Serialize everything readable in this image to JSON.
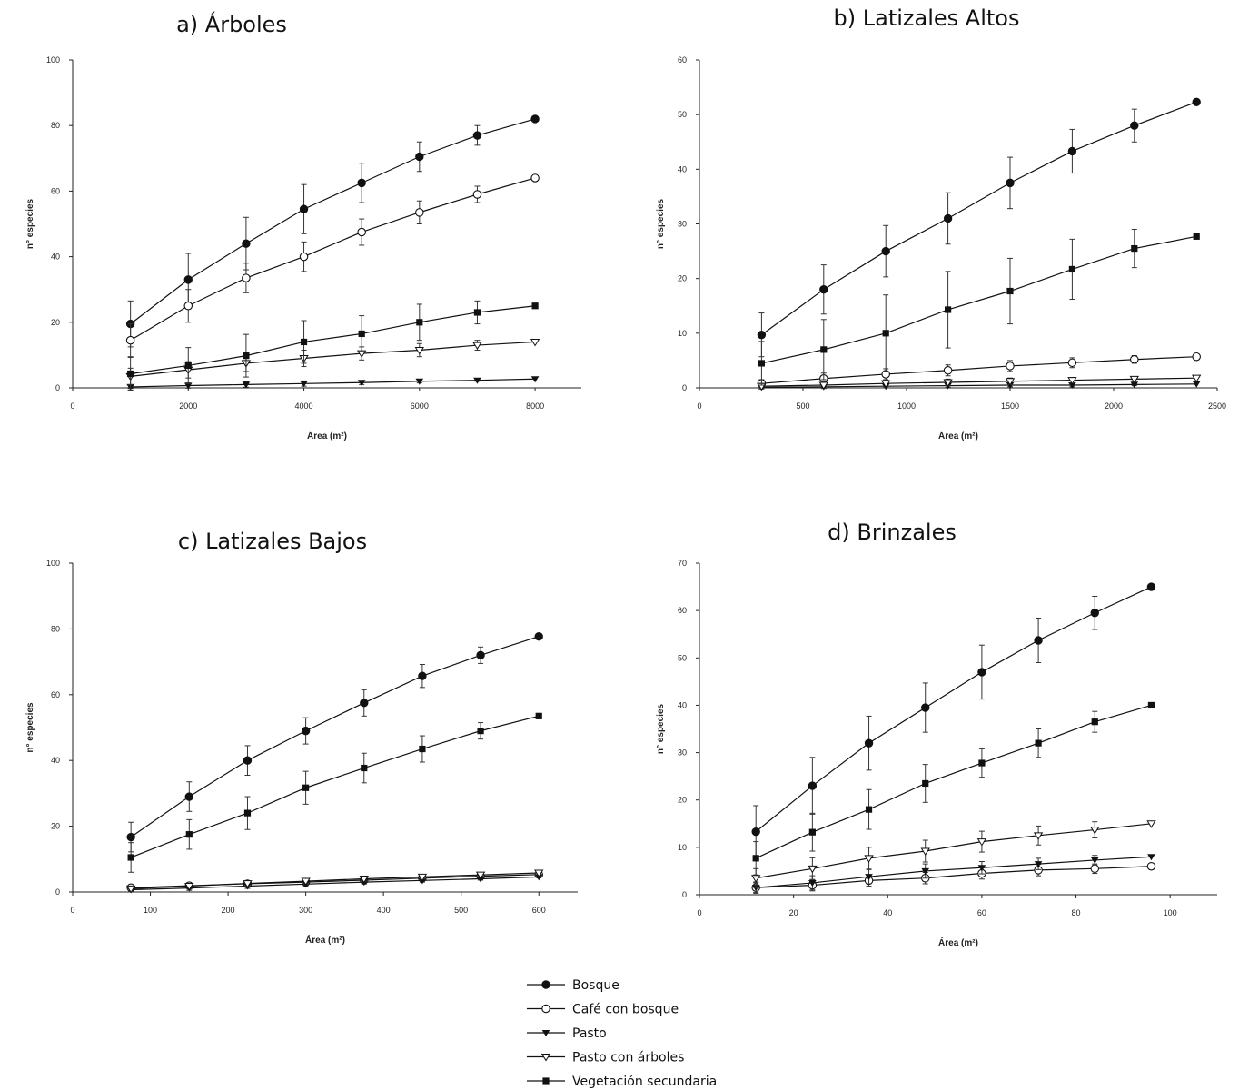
{
  "chart_data": [
    {
      "type": "line",
      "title": "a) Árboles",
      "xlabel": "Área (m²)",
      "ylabel": "n° especies",
      "xlim": [
        0,
        8800
      ],
      "ylim": [
        0,
        100
      ],
      "xticks": [
        0,
        2000,
        4000,
        6000,
        8000
      ],
      "xtick_labels": [
        "0",
        "2000",
        "4000",
        "6000",
        "8000"
      ],
      "yticks": [
        0,
        20,
        40,
        60,
        80,
        100
      ],
      "ytick_labels": [
        "0",
        "20",
        "40",
        "60",
        "80",
        "100"
      ],
      "x": [
        1000,
        2000,
        3000,
        4000,
        5000,
        6000,
        7000,
        8000
      ],
      "series": [
        {
          "name": "Bosque",
          "marker": "filled-circle",
          "values": [
            19.5,
            33,
            44,
            54.5,
            62.5,
            70.5,
            77,
            82
          ],
          "errors": [
            7,
            8,
            8,
            7.5,
            6,
            4.5,
            3,
            0
          ]
        },
        {
          "name": "Café con bosque",
          "marker": "open-circle",
          "values": [
            14.5,
            25,
            33.5,
            40,
            47.5,
            53.5,
            59,
            64
          ],
          "errors": [
            5,
            5,
            4.5,
            4.5,
            4,
            3.5,
            2.5,
            0
          ]
        },
        {
          "name": "Pasto",
          "marker": "filled-triangle",
          "values": [
            0.3,
            0.7,
            1,
            1.3,
            1.6,
            2,
            2.3,
            2.7
          ],
          "errors": [
            0.5,
            0.8,
            0.8,
            0.8,
            0.6,
            0.5,
            0.3,
            0
          ]
        },
        {
          "name": "Pasto con árboles",
          "marker": "open-triangle",
          "values": [
            3.5,
            5.5,
            7.5,
            9,
            10.5,
            11.5,
            13,
            14
          ],
          "errors": [
            2.5,
            2.5,
            2.5,
            2.5,
            2,
            2,
            1.5,
            0
          ]
        },
        {
          "name": "Vegetación secundaria",
          "marker": "filled-square",
          "values": [
            4.3,
            6.8,
            9.8,
            14,
            16.5,
            20,
            23,
            25
          ],
          "errors": [
            5,
            5.5,
            6.5,
            6.5,
            5.5,
            5.5,
            3.5,
            0
          ]
        }
      ]
    },
    {
      "type": "line",
      "title": "b) Latizales Altos",
      "xlabel": "Área (m²)",
      "ylabel": "n° especies",
      "xlim": [
        0,
        2500
      ],
      "ylim": [
        0,
        60
      ],
      "xticks": [
        0,
        500,
        1000,
        1500,
        2000,
        2500
      ],
      "xtick_labels": [
        "0",
        "500",
        "1000",
        "1500",
        "2000",
        "2500"
      ],
      "yticks": [
        0,
        10,
        20,
        30,
        40,
        50,
        60
      ],
      "ytick_labels": [
        "0",
        "10",
        "20",
        "30",
        "40",
        "50",
        "60"
      ],
      "x": [
        300,
        600,
        900,
        1200,
        1500,
        1800,
        2100,
        2400
      ],
      "series": [
        {
          "name": "Bosque",
          "marker": "filled-circle",
          "values": [
            9.7,
            18,
            25,
            31,
            37.5,
            43.3,
            48,
            52.3
          ],
          "errors": [
            4,
            4.5,
            4.7,
            4.7,
            4.7,
            4,
            3,
            0
          ]
        },
        {
          "name": "Café con bosque",
          "marker": "open-circle",
          "values": [
            0.8,
            1.7,
            2.5,
            3.2,
            4,
            4.6,
            5.2,
            5.7
          ],
          "errors": [
            0.7,
            1,
            1,
            1,
            1,
            0.9,
            0.7,
            0
          ]
        },
        {
          "name": "Pasto",
          "marker": "filled-triangle",
          "values": [
            0.1,
            0.2,
            0.3,
            0.4,
            0.5,
            0.5,
            0.6,
            0.7
          ],
          "errors": [
            0.3,
            0.3,
            0.3,
            0.3,
            0.3,
            0.3,
            0.2,
            0
          ]
        },
        {
          "name": "Pasto con árboles",
          "marker": "open-triangle",
          "values": [
            0.3,
            0.5,
            0.8,
            1,
            1.2,
            1.4,
            1.6,
            1.8
          ],
          "errors": [
            0.5,
            0.6,
            0.6,
            0.6,
            0.6,
            0.5,
            0.4,
            0
          ]
        },
        {
          "name": "Vegetación secundaria",
          "marker": "filled-square",
          "values": [
            4.5,
            7,
            10,
            14.3,
            17.7,
            21.7,
            25.5,
            27.7
          ],
          "errors": [
            4,
            5.5,
            7,
            7,
            6,
            5.5,
            3.5,
            0
          ]
        }
      ]
    },
    {
      "type": "line",
      "title": "c) Latizales Bajos",
      "xlabel": "Área (m²)",
      "ylabel": "n° especies",
      "xlim": [
        0,
        650
      ],
      "ylim": [
        0,
        100
      ],
      "xticks": [
        0,
        100,
        200,
        300,
        400,
        500,
        600
      ],
      "xtick_labels": [
        "0",
        "100",
        "200",
        "300",
        "400",
        "500",
        "600"
      ],
      "yticks": [
        0,
        20,
        40,
        60,
        80,
        100
      ],
      "ytick_labels": [
        "0",
        "20",
        "40",
        "60",
        "80",
        "100"
      ],
      "x": [
        75,
        150,
        225,
        300,
        375,
        450,
        525,
        600
      ],
      "series": [
        {
          "name": "Bosque",
          "marker": "filled-circle",
          "values": [
            16.7,
            29,
            40,
            49,
            57.5,
            65.7,
            72,
            77.7
          ],
          "errors": [
            4.5,
            4.5,
            4.5,
            4,
            4,
            3.5,
            2.5,
            0
          ]
        },
        {
          "name": "Café con bosque",
          "marker": "open-circle",
          "values": [
            1.3,
            1.9,
            2.5,
            3,
            3.6,
            4.2,
            4.8,
            5.3
          ],
          "errors": [
            0.8,
            0.8,
            0.8,
            0.8,
            0.7,
            0.6,
            0.4,
            0
          ]
        },
        {
          "name": "Pasto",
          "marker": "filled-triangle",
          "values": [
            0.7,
            1.2,
            1.8,
            2.4,
            3,
            3.5,
            4,
            4.6
          ],
          "errors": [
            0.6,
            0.7,
            0.7,
            0.7,
            0.6,
            0.5,
            0.4,
            0
          ]
        },
        {
          "name": "Pasto con árboles",
          "marker": "open-triangle",
          "values": [
            1,
            1.8,
            2.6,
            3.3,
            4,
            4.6,
            5.2,
            5.8
          ],
          "errors": [
            0.8,
            0.8,
            0.8,
            0.8,
            0.7,
            0.6,
            0.4,
            0
          ]
        },
        {
          "name": "Vegetación secundaria",
          "marker": "filled-square",
          "values": [
            10.5,
            17.5,
            24,
            31.7,
            37.7,
            43.5,
            49,
            53.5
          ],
          "errors": [
            4.5,
            4.5,
            5,
            5,
            4.5,
            4,
            2.5,
            0
          ]
        }
      ]
    },
    {
      "type": "line",
      "title": "d) Brinzales",
      "xlabel": "Área (m²)",
      "ylabel": "n° especies",
      "xlim": [
        0,
        110
      ],
      "ylim": [
        0,
        70
      ],
      "xticks": [
        0,
        20,
        40,
        60,
        80,
        100
      ],
      "xtick_labels": [
        "0",
        "20",
        "40",
        "60",
        "80",
        "100"
      ],
      "yticks": [
        0,
        10,
        20,
        30,
        40,
        50,
        60,
        70
      ],
      "ytick_labels": [
        "0",
        "10",
        "20",
        "30",
        "40",
        "50",
        "60",
        "70"
      ],
      "x": [
        12,
        24,
        36,
        48,
        60,
        72,
        84,
        96
      ],
      "series": [
        {
          "name": "Bosque",
          "marker": "filled-circle",
          "values": [
            13.3,
            23,
            32,
            39.5,
            47,
            53.7,
            59.5,
            65
          ],
          "errors": [
            5.5,
            6,
            5.7,
            5.2,
            5.7,
            4.7,
            3.5,
            0
          ]
        },
        {
          "name": "Café con bosque",
          "marker": "open-circle",
          "values": [
            1.5,
            2,
            3,
            3.5,
            4.5,
            5.2,
            5.5,
            6
          ],
          "errors": [
            1,
            1.2,
            1.2,
            1.2,
            1.2,
            1.2,
            1,
            0
          ]
        },
        {
          "name": "Pasto",
          "marker": "filled-triangle",
          "values": [
            1.5,
            2.5,
            3.8,
            5,
            5.7,
            6.5,
            7.3,
            8
          ],
          "errors": [
            1.2,
            1.5,
            1.5,
            1.5,
            1.3,
            1.2,
            1,
            0
          ]
        },
        {
          "name": "Pasto con árboles",
          "marker": "open-triangle",
          "values": [
            3.5,
            5.5,
            7.7,
            9.2,
            11.2,
            12.5,
            13.7,
            15
          ],
          "errors": [
            2,
            2.3,
            2.3,
            2.3,
            2.2,
            2,
            1.7,
            0
          ]
        },
        {
          "name": "Vegetación secundaria",
          "marker": "filled-square",
          "values": [
            7.7,
            13.2,
            18,
            23.5,
            27.8,
            32,
            36.5,
            40
          ],
          "errors": [
            3.5,
            4,
            4.2,
            4,
            3,
            3,
            2.2,
            0
          ]
        }
      ]
    }
  ],
  "legend": {
    "position": "bottom-center",
    "items": [
      {
        "label": "Bosque",
        "marker": "filled-circle"
      },
      {
        "label": "Café con bosque",
        "marker": "open-circle"
      },
      {
        "label": "Pasto",
        "marker": "filled-triangle"
      },
      {
        "label": "Pasto con árboles",
        "marker": "open-triangle"
      },
      {
        "label": "Vegetación secundaria",
        "marker": "filled-square"
      }
    ]
  }
}
